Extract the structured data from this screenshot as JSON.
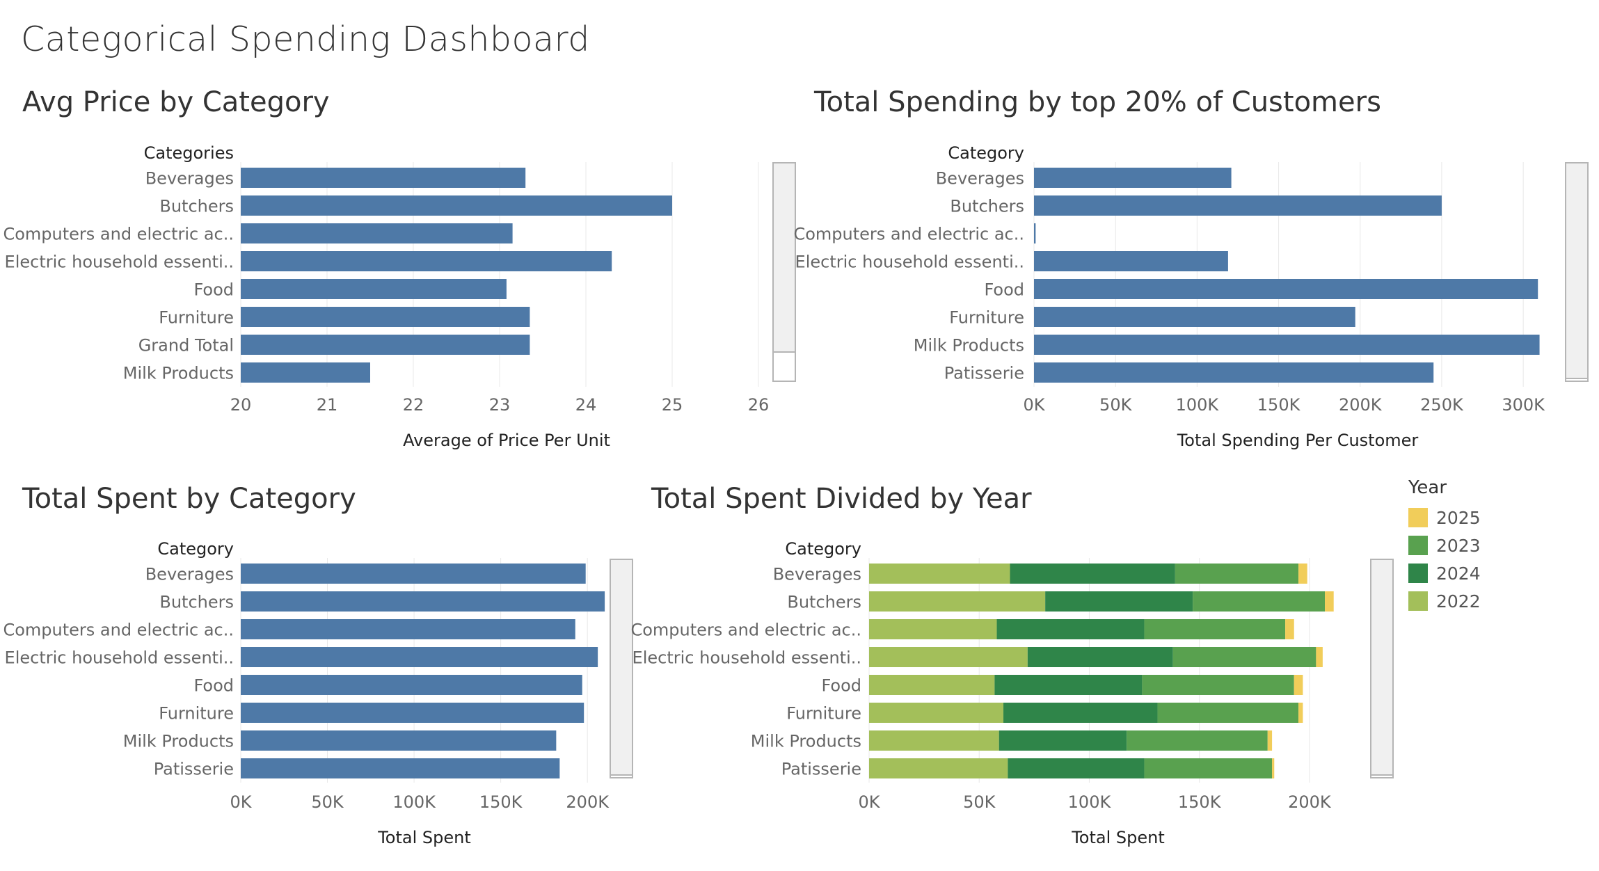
{
  "dashboard": {
    "title": "Categorical Spending Dashboard"
  },
  "colors": {
    "bar": "#4e79a7",
    "y2025": "#f1cd5a",
    "y2023": "#59a14f",
    "y2024": "#2f8549",
    "y2022": "#a3bf5a",
    "grid": "#e8e8e8",
    "scrollbar": "#f0f0f0"
  },
  "legend": {
    "title": "Year",
    "items": [
      {
        "label": "2025",
        "color": "#f1cd5a"
      },
      {
        "label": "2023",
        "color": "#59a14f"
      },
      {
        "label": "2024",
        "color": "#2f8549"
      },
      {
        "label": "2022",
        "color": "#a3bf5a"
      }
    ]
  },
  "chart_data": [
    {
      "id": "avg_price",
      "type": "bar",
      "title": "Avg Price by Category",
      "category_header": "Categories",
      "xlabel": "Average of Price Per Unit",
      "categories": [
        "Beverages",
        "Butchers",
        "Computers and electric ac..",
        "Electric household essenti..",
        "Food",
        "Furniture",
        "Grand Total",
        "Milk Products"
      ],
      "values": [
        23.3,
        25.0,
        23.15,
        24.3,
        23.08,
        23.35,
        23.35,
        21.5
      ],
      "xlim": [
        20,
        26
      ],
      "ticks": [
        20,
        21,
        22,
        23,
        24,
        25,
        26
      ],
      "tick_labels": [
        "20",
        "21",
        "22",
        "23",
        "24",
        "25",
        "26"
      ]
    },
    {
      "id": "top20",
      "type": "bar",
      "title": "Total Spending by top 20% of Customers",
      "category_header": "Category",
      "xlabel": "Total Spending Per Customer",
      "categories": [
        "Beverages",
        "Butchers",
        "Computers and electric ac..",
        "Electric household essenti..",
        "Food",
        "Furniture",
        "Milk Products",
        "Patisserie"
      ],
      "values": [
        121000,
        250000,
        1000,
        119000,
        309000,
        197000,
        310000,
        245000
      ],
      "xlim": [
        0,
        320000
      ],
      "ticks": [
        0,
        50000,
        100000,
        150000,
        200000,
        250000,
        300000
      ],
      "tick_labels": [
        "0K",
        "50K",
        "100K",
        "150K",
        "200K",
        "250K",
        "300K"
      ]
    },
    {
      "id": "total_spent",
      "type": "bar",
      "title": "Total Spent by Category",
      "category_header": "Category",
      "xlabel": "Total Spent",
      "categories": [
        "Beverages",
        "Butchers",
        "Computers and electric ac..",
        "Electric household essenti..",
        "Food",
        "Furniture",
        "Milk Products",
        "Patisserie"
      ],
      "values": [
        199000,
        210000,
        193000,
        206000,
        197000,
        198000,
        182000,
        184000
      ],
      "xlim": [
        0,
        220000
      ],
      "ticks": [
        0,
        50000,
        100000,
        150000,
        200000
      ],
      "tick_labels": [
        "0K",
        "50K",
        "100K",
        "150K",
        "200K"
      ]
    },
    {
      "id": "by_year",
      "type": "bar",
      "stacked": true,
      "title": "Total Spent Divided by Year",
      "category_header": "Category",
      "xlabel": "Total Spent",
      "categories": [
        "Beverages",
        "Butchers",
        "Computers and electric ac..",
        "Electric household essenti..",
        "Food",
        "Furniture",
        "Milk Products",
        "Patisserie"
      ],
      "series": [
        {
          "name": "2022",
          "values": [
            64000,
            80000,
            58000,
            72000,
            57000,
            61000,
            59000,
            63000
          ]
        },
        {
          "name": "2024",
          "values": [
            75000,
            67000,
            67000,
            66000,
            67000,
            70000,
            58000,
            62000
          ]
        },
        {
          "name": "2023",
          "values": [
            56000,
            60000,
            64000,
            65000,
            69000,
            64000,
            64000,
            58000
          ]
        },
        {
          "name": "2025",
          "values": [
            4000,
            4000,
            4000,
            3000,
            4000,
            2000,
            2000,
            1000
          ]
        }
      ],
      "xlim": [
        0,
        225000
      ],
      "ticks": [
        0,
        50000,
        100000,
        150000,
        200000
      ],
      "tick_labels": [
        "0K",
        "50K",
        "100K",
        "150K",
        "200K"
      ]
    }
  ]
}
